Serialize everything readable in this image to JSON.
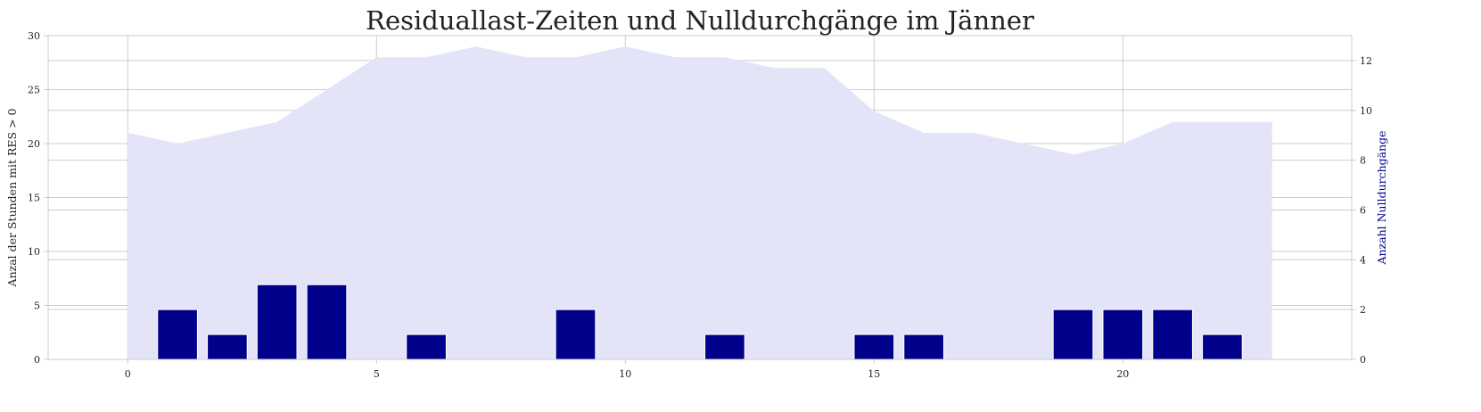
{
  "chart_data": {
    "type": "bar",
    "title": "Residuallast-Zeiten und Nulldurchgänge im Jänner",
    "xlabel": "",
    "ylabel": "Anzal der Stunden mit RES > 0",
    "ylabel_right": "Anzahl Nulldurchgänge",
    "x": [
      0,
      1,
      2,
      3,
      4,
      5,
      6,
      7,
      8,
      9,
      10,
      11,
      12,
      13,
      14,
      15,
      16,
      17,
      18,
      19,
      20,
      21,
      22,
      23
    ],
    "xlim": [
      -1.6,
      24.6
    ],
    "xticks": [
      0,
      5,
      10,
      15,
      20
    ],
    "grid": true,
    "series": [
      {
        "kind": "area",
        "axis": "left",
        "color": "#e4e4f8",
        "values": [
          21,
          20,
          21,
          22,
          25,
          28,
          28,
          29,
          28,
          28,
          29,
          28,
          28,
          27,
          27,
          23,
          21,
          21,
          20,
          19,
          20,
          22,
          22,
          22
        ]
      },
      {
        "kind": "bar",
        "axis": "right",
        "color": "#00008b",
        "values": [
          0,
          2,
          1,
          3,
          3,
          0,
          1,
          0,
          0,
          2,
          0,
          0,
          1,
          0,
          0,
          1,
          1,
          0,
          0,
          2,
          2,
          2,
          1,
          0
        ]
      }
    ],
    "y_left": {
      "lim": [
        0,
        30
      ],
      "ticks": [
        0,
        5,
        10,
        15,
        20,
        25,
        30
      ]
    },
    "y_right": {
      "lim": [
        0,
        13
      ],
      "ticks": [
        0,
        2,
        4,
        6,
        8,
        10,
        12
      ],
      "label_color": "#00008b"
    }
  }
}
